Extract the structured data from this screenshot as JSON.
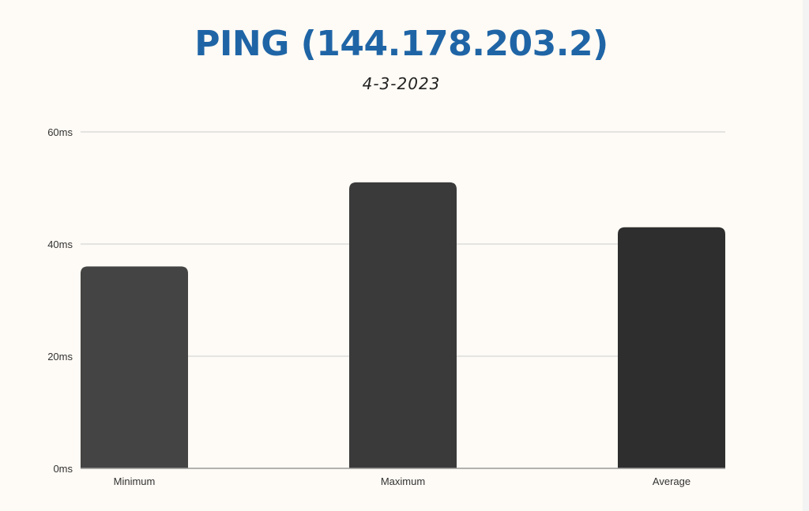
{
  "header": {
    "title": "PING (144.178.203.2)",
    "subtitle": "4-3-2023"
  },
  "colors": {
    "title": "#1f65a6",
    "background": "#fefaf5",
    "grid": "#dcdcdc",
    "axis": "#999999"
  },
  "chart_data": {
    "type": "bar",
    "title": "PING (144.178.203.2)",
    "subtitle": "4-3-2023",
    "categories": [
      "Minimum",
      "Maximum",
      "Average"
    ],
    "values": [
      36,
      51,
      43
    ],
    "unit": "ms",
    "bar_colors": [
      "#444444",
      "#3a3a3a",
      "#2e2e2e"
    ],
    "ylim": [
      0,
      60
    ],
    "yticks": [
      0,
      20,
      40,
      60
    ],
    "ytick_labels": [
      "0ms",
      "20ms",
      "40ms",
      "60ms"
    ],
    "xlabel": "",
    "ylabel": "",
    "grid": true,
    "legend": "none"
  }
}
